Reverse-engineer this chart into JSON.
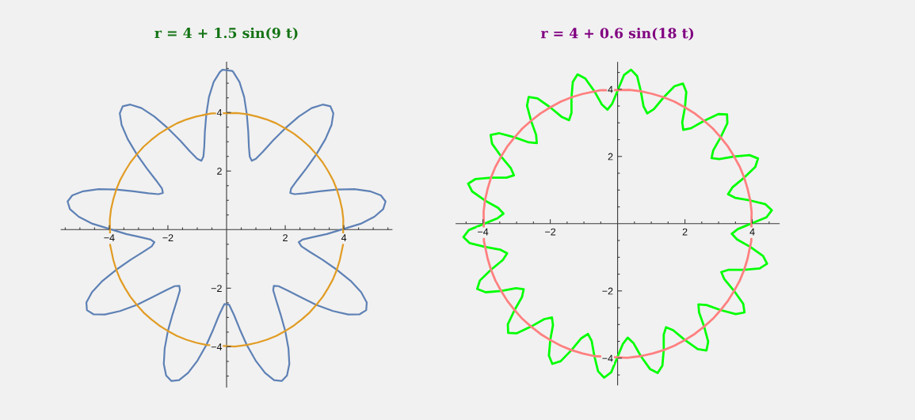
{
  "chart_data": [
    {
      "type": "line",
      "title": "r = 4 + 1.5 sin(9 t)",
      "xlim": [
        -5.64,
        5.64
      ],
      "ylim": [
        -5.38,
        5.72
      ],
      "xticks": [
        {
          "value": -5.5,
          "label": null
        },
        {
          "value": -5,
          "label": null
        },
        {
          "value": -4.5,
          "label": null
        },
        {
          "value": -4,
          "label": "−4"
        },
        {
          "value": -3.5,
          "label": null
        },
        {
          "value": -3,
          "label": null
        },
        {
          "value": -2.5,
          "label": null
        },
        {
          "value": -2,
          "label": "−2"
        },
        {
          "value": -1.5,
          "label": null
        },
        {
          "value": -1,
          "label": null
        },
        {
          "value": -0.5,
          "label": null
        },
        {
          "value": 0.5,
          "label": null
        },
        {
          "value": 1,
          "label": null
        },
        {
          "value": 1.5,
          "label": null
        },
        2,
        {
          "value": 2.5,
          "label": null
        },
        {
          "value": 3,
          "label": null
        },
        {
          "value": 3.5,
          "label": null
        },
        4,
        {
          "value": 4.5,
          "label": null
        },
        {
          "value": 5,
          "label": null
        },
        {
          "value": 5.5,
          "label": null
        }
      ],
      "yticks": [
        {
          "value": -5,
          "label": null
        },
        {
          "value": -4.5,
          "label": null
        },
        {
          "value": -4,
          "label": "−4"
        },
        {
          "value": -3.5,
          "label": null
        },
        {
          "value": -3,
          "label": null
        },
        {
          "value": -2.5,
          "label": null
        },
        {
          "value": -2,
          "label": "−2"
        },
        {
          "value": -1.5,
          "label": null
        },
        {
          "value": -1,
          "label": null
        },
        {
          "value": -0.5,
          "label": null
        },
        {
          "value": 0.5,
          "label": null
        },
        {
          "value": 1,
          "label": null
        },
        {
          "value": 1.5,
          "label": null
        },
        2,
        {
          "value": 2.5,
          "label": null
        },
        {
          "value": 3,
          "label": null
        },
        {
          "value": 3.5,
          "label": null
        },
        4,
        {
          "value": 4.5,
          "label": null
        },
        {
          "value": 5,
          "label": null
        },
        {
          "value": 5.5,
          "label": null
        }
      ],
      "series": [
        {
          "color": "#5e81b5",
          "x": [
            4.57,
            5.04,
            5.34,
            5.42,
            5.26,
            4.89,
            4.36,
            3.76,
            3.17,
            2.66,
            2.32,
            2.17,
            2.2,
            2.41,
            2.72,
            3.06,
            3.37,
            3.58,
            3.64,
            3.54,
            3.28,
            2.9,
            2.46,
            2,
            1.58,
            1.24,
            1,
            0.86,
            0.79,
            0.76,
            0.74,
            0.69,
            0.6,
            0.44,
            0.23,
            0.19,
            -0.14,
            -0.23,
            -0.44,
            -0.6,
            -0.69,
            -0.74,
            -0.76,
            -0.79,
            -0.86,
            -1,
            -1.24,
            -1.58,
            -2,
            -2.46,
            -2.9,
            -3.28,
            -3.54,
            -3.64,
            -3.58,
            -3.37,
            -3.06,
            -2.72,
            -2.41,
            -2.2,
            -2.17,
            -2.32,
            -2.66,
            -3.17,
            -3.76,
            -4.36,
            -4.89,
            -5.26,
            -5.42,
            -5.34,
            -5.04,
            -4.57,
            -3.42,
            -2.93,
            -2.59,
            -2.46,
            -2.55,
            -2.84,
            -3.27,
            -3.76,
            -4.23,
            -4.59,
            -4.78,
            -4.76,
            -4.54,
            -4.15,
            -3.63,
            -3.06,
            -2.53,
            -2.08,
            -1.77,
            -1.61,
            -1.59,
            -1.69,
            -1.84,
            -2,
            -2.11,
            -2.14,
            -2.06,
            -1.88,
            -1.62,
            -1.31,
            -0.99,
            -0.69,
            -0.45,
            -0.26,
            -0.11,
            -0.07,
            0.09,
            0.11,
            0.26,
            0.45,
            0.69,
            0.99,
            1.31,
            1.62,
            1.88,
            2.06,
            2.14,
            2.11,
            2,
            1.84,
            1.69,
            1.59,
            1.61,
            1.77,
            2.08,
            2.53,
            3.06,
            3.63,
            4.15,
            4.54,
            4.76,
            4.78,
            4.59,
            4.23,
            3.76,
            3.27,
            2.84,
            2.55,
            2.46,
            2.59,
            2.93,
            3.42,
            4.57,
            5.04
          ],
          "values": [
            0.2,
            0.44,
            0.7,
            0.96,
            1.17,
            1.31,
            1.38,
            1.37,
            1.31,
            1.24,
            1.21,
            1.25,
            1.4,
            1.69,
            2.09,
            2.57,
            3.09,
            3.58,
            3.97,
            4.21,
            4.27,
            4.15,
            3.86,
            3.46,
            3.04,
            2.66,
            2.42,
            2.35,
            2.49,
            2.84,
            3.34,
            3.94,
            4.53,
            5.04,
            5.38,
            5.42,
            5.46,
            5.38,
            5.04,
            4.53,
            3.94,
            3.34,
            2.84,
            2.49,
            2.35,
            2.42,
            2.66,
            3.04,
            3.46,
            3.86,
            4.15,
            4.27,
            4.21,
            3.97,
            3.58,
            3.09,
            2.57,
            2.09,
            1.69,
            1.4,
            1.25,
            1.21,
            1.24,
            1.31,
            1.37,
            1.38,
            1.31,
            1.17,
            0.96,
            0.7,
            0.44,
            0.2,
            -0.15,
            -0.26,
            -0.34,
            -0.43,
            -0.57,
            -0.76,
            -1.03,
            -1.37,
            -1.75,
            -2.14,
            -2.49,
            -2.75,
            -2.89,
            -2.9,
            -2.78,
            -2.57,
            -2.31,
            -2.08,
            -1.93,
            -1.92,
            -2.07,
            -2.41,
            -2.89,
            -3.46,
            -4.06,
            -4.59,
            -4.98,
            -5.17,
            -5.14,
            -4.89,
            -4.47,
            -3.94,
            -3.4,
            -2.93,
            -2.61,
            -2.54,
            -2.57,
            -2.61,
            -2.93,
            -3.4,
            -3.94,
            -4.47,
            -4.89,
            -5.14,
            -5.17,
            -4.98,
            -4.59,
            -4.06,
            -3.46,
            -2.89,
            -2.41,
            -2.07,
            -1.92,
            -1.93,
            -2.08,
            -2.31,
            -2.57,
            -2.78,
            -2.9,
            -2.89,
            -2.75,
            -2.49,
            -2.14,
            -1.75,
            -1.37,
            -1.03,
            -0.76,
            -0.57,
            -0.43,
            -0.34,
            -0.26,
            -0.15,
            0.2,
            0.44
          ]
        },
        {
          "color": "#e19c24",
          "x": [
            3.98,
            3.94,
            3.86,
            3.76,
            3.63,
            3.46,
            3.28,
            3.06,
            2.83,
            2.57,
            2.29,
            2,
            1.69,
            1.37,
            1.04,
            0.69,
            0.35,
            -0.52,
            -1.04,
            -1.37,
            -1.69,
            -2,
            -2.29,
            -2.57,
            -2.83,
            -3.06,
            -3.28,
            -3.46,
            -3.63,
            -3.76,
            -3.86,
            -3.94,
            -3.98,
            -3.97,
            -3.86,
            -3.76,
            -3.63,
            -3.46,
            -3.28,
            -3.06,
            -2.83,
            -2.57,
            -2.29,
            -2,
            -1.69,
            -1.37,
            -1.04,
            -0.69,
            0.28,
            0.69,
            1.04,
            1.37,
            1.69,
            2,
            2.29,
            2.57,
            2.83,
            3.06,
            3.28,
            3.46,
            3.63,
            3.76,
            3.86,
            3.97,
            3.98,
            3.94
          ],
          "values": [
            0.35,
            0.69,
            1.04,
            1.37,
            1.69,
            2,
            2.29,
            2.57,
            2.83,
            3.06,
            3.28,
            3.46,
            3.63,
            3.76,
            3.86,
            3.94,
            3.98,
            3.97,
            3.86,
            3.76,
            3.63,
            3.46,
            3.28,
            3.06,
            2.83,
            2.57,
            2.29,
            2,
            1.69,
            1.37,
            1.04,
            0.69,
            0.35,
            -0.52,
            -1.04,
            -1.37,
            -1.69,
            -2,
            -2.29,
            -2.57,
            -2.83,
            -3.06,
            -3.28,
            -3.46,
            -3.63,
            -3.76,
            -3.86,
            -3.94,
            -3.99,
            -3.94,
            -3.86,
            -3.76,
            -3.63,
            -3.46,
            -3.28,
            -3.06,
            -2.83,
            -2.57,
            -2.29,
            -2,
            -1.69,
            -1.37,
            -1.04,
            -0.52,
            0.35,
            0.69
          ]
        }
      ]
    },
    {
      "type": "line",
      "title": "r = 4 + 0.6 sin(18 t)",
      "xlim": [
        -4.8,
        4.8
      ],
      "ylim": [
        -4.8,
        4.8
      ],
      "xticks": [
        {
          "value": -4.5,
          "label": null
        },
        {
          "value": -4,
          "label": "−4"
        },
        {
          "value": -3.5,
          "label": null
        },
        {
          "value": -3,
          "label": null
        },
        {
          "value": -2.5,
          "label": null
        },
        {
          "value": -2,
          "label": "−2"
        },
        {
          "value": -1.5,
          "label": null
        },
        {
          "value": -1,
          "label": null
        },
        {
          "value": -0.5,
          "label": null
        },
        {
          "value": 0.5,
          "label": null
        },
        {
          "value": 1,
          "label": null
        },
        {
          "value": 1.5,
          "label": null
        },
        2,
        {
          "value": 2.5,
          "label": null
        },
        {
          "value": 3,
          "label": null
        },
        {
          "value": 3.5,
          "label": null
        },
        4,
        {
          "value": 4.5,
          "label": null
        }
      ],
      "yticks": [
        {
          "value": -4.5,
          "label": null
        },
        {
          "value": -4,
          "label": "−4"
        },
        {
          "value": -3.5,
          "label": null
        },
        {
          "value": -3,
          "label": null
        },
        {
          "value": -2.5,
          "label": null
        },
        {
          "value": -2,
          "label": "−2"
        },
        {
          "value": -1.5,
          "label": null
        },
        {
          "value": -1,
          "label": null
        },
        {
          "value": -0.5,
          "label": null
        },
        {
          "value": 0.5,
          "label": null
        },
        {
          "value": 1,
          "label": null
        },
        {
          "value": 1.5,
          "label": null
        },
        2,
        {
          "value": 2.5,
          "label": null
        },
        {
          "value": 3,
          "label": null
        },
        {
          "value": 3.5,
          "label": null
        },
        4,
        {
          "value": 4.5,
          "label": null
        }
      ],
      "series": [
        {
          "color": "#00ff00",
          "x": [
            4.42,
            4.58,
            4.39,
            3.94,
            3.49,
            3.28,
            3.41,
            3.76,
            4.09,
            4.17,
            3.92,
            3.46,
            3.02,
            2.79,
            2.84,
            3.06,
            3.26,
            3.25,
            2.99,
            2.57,
            2.18,
            1.95,
            1.92,
            2,
            2.04,
            1.94,
            1.69,
            1.37,
            1.08,
            0.88,
            0.77,
            0.69,
            0.58,
            0.4,
            0.19,
            -0.16,
            -0.3,
            -0.47,
            -0.69,
            -0.96,
            -1.19,
            -1.33,
            -1.37,
            -1.37,
            -1.44,
            -1.65,
            -2,
            -2.38,
            -2.64,
            -2.69,
            -2.57,
            -2.42,
            -2.4,
            -2.64,
            -3.06,
            -3.51,
            -3.77,
            -3.73,
            -3.46,
            -3.17,
            -3.08,
            -3.3,
            -3.76,
            -4.22,
            -4.44,
            -4.32,
            -3.94,
            -3.55,
            -3.39,
            -3.57,
            -4.42,
            -4.58,
            -4.39,
            -3.94,
            -3.49,
            -3.28,
            -3.41,
            -3.76,
            -4.09,
            -4.17,
            -3.92,
            -3.46,
            -3.02,
            -2.79,
            -2.84,
            -3.06,
            -3.26,
            -3.25,
            -2.99,
            -2.57,
            -2.18,
            -1.95,
            -1.92,
            -2,
            -2.04,
            -1.94,
            -1.69,
            -1.37,
            -1.08,
            -0.88,
            -0.77,
            -0.69,
            -0.58,
            -0.4,
            -0.19,
            0.16,
            0.3,
            0.47,
            0.69,
            0.96,
            1.19,
            1.33,
            1.37,
            1.37,
            1.44,
            1.65,
            2,
            2.38,
            2.64,
            2.69,
            2.57,
            2.42,
            2.4,
            2.64,
            3.06,
            3.51,
            3.77,
            3.73,
            3.46,
            3.17,
            3.08,
            3.3,
            3.76,
            4.22,
            4.44,
            4.32,
            3.94,
            3.55,
            3.39,
            3.57,
            4.42,
            4.58,
            4.39
          ],
          "values": [
            0.19,
            0.4,
            0.58,
            0.69,
            0.77,
            0.88,
            1.08,
            1.37,
            1.69,
            1.94,
            2.04,
            2,
            1.92,
            1.95,
            2.18,
            2.57,
            2.99,
            3.25,
            3.26,
            3.06,
            2.84,
            2.79,
            3.02,
            3.46,
            3.92,
            4.17,
            4.09,
            3.76,
            3.41,
            3.28,
            3.49,
            3.94,
            4.39,
            4.58,
            4.42,
            3.57,
            3.39,
            3.55,
            3.94,
            4.32,
            4.44,
            4.22,
            3.76,
            3.3,
            3.08,
            3.17,
            3.46,
            3.73,
            3.77,
            3.51,
            3.06,
            2.64,
            2.4,
            2.42,
            2.57,
            2.69,
            2.64,
            2.38,
            2,
            1.65,
            1.44,
            1.37,
            1.37,
            1.33,
            1.19,
            0.96,
            0.69,
            0.47,
            0.3,
            0.16,
            -0.19,
            -0.4,
            -0.58,
            -0.69,
            -0.77,
            -0.88,
            -1.08,
            -1.37,
            -1.69,
            -1.94,
            -2.04,
            -2,
            -1.92,
            -1.95,
            -2.18,
            -2.57,
            -2.99,
            -3.25,
            -3.26,
            -3.06,
            -2.84,
            -2.79,
            -3.02,
            -3.46,
            -3.92,
            -4.17,
            -4.09,
            -3.76,
            -3.41,
            -3.28,
            -3.49,
            -3.94,
            -4.39,
            -4.58,
            -4.42,
            -3.57,
            -3.39,
            -3.55,
            -3.94,
            -4.32,
            -4.44,
            -4.22,
            -3.76,
            -3.3,
            -3.08,
            -3.17,
            -3.46,
            -3.73,
            -3.77,
            -3.51,
            -3.06,
            -2.64,
            -2.4,
            -2.42,
            -2.57,
            -2.69,
            -2.64,
            -2.38,
            -2,
            -1.65,
            -1.44,
            -1.37,
            -1.37,
            -1.33,
            -1.19,
            -0.96,
            -0.69,
            -0.47,
            -0.3,
            -0.16,
            0.19,
            0.4,
            0.58
          ]
        },
        {
          "color": "#ff8080",
          "x": [
            3.98,
            3.94,
            3.86,
            3.76,
            3.63,
            3.46,
            3.28,
            3.06,
            2.83,
            2.57,
            2.29,
            2,
            1.69,
            1.37,
            1.04,
            0.69,
            0.35,
            -0.52,
            -1.04,
            -1.37,
            -1.69,
            -2,
            -2.29,
            -2.57,
            -2.83,
            -3.06,
            -3.28,
            -3.46,
            -3.63,
            -3.76,
            -3.86,
            -3.94,
            -3.98,
            -3.97,
            -3.86,
            -3.76,
            -3.63,
            -3.46,
            -3.28,
            -3.06,
            -2.83,
            -2.57,
            -2.29,
            -2,
            -1.69,
            -1.37,
            -1.04,
            -0.69,
            0.28,
            0.69,
            1.04,
            1.37,
            1.69,
            2,
            2.29,
            2.57,
            2.83,
            3.06,
            3.28,
            3.46,
            3.63,
            3.76,
            3.86,
            3.97,
            3.98,
            3.94
          ],
          "values": [
            0.35,
            0.69,
            1.04,
            1.37,
            1.69,
            2,
            2.29,
            2.57,
            2.83,
            3.06,
            3.28,
            3.46,
            3.63,
            3.76,
            3.86,
            3.94,
            3.98,
            3.97,
            3.86,
            3.76,
            3.63,
            3.46,
            3.28,
            3.06,
            2.83,
            2.57,
            2.29,
            2,
            1.69,
            1.37,
            1.04,
            0.69,
            0.35,
            -0.52,
            -1.04,
            -1.37,
            -1.69,
            -2,
            -2.29,
            -2.57,
            -2.83,
            -3.06,
            -3.28,
            -3.46,
            -3.63,
            -3.76,
            -3.86,
            -3.94,
            -3.99,
            -3.94,
            -3.86,
            -3.76,
            -3.63,
            -3.46,
            -3.28,
            -3.06,
            -2.83,
            -2.57,
            -2.29,
            -2,
            -1.69,
            -1.37,
            -1.04,
            -0.52,
            0.35,
            0.69
          ]
        }
      ]
    }
  ]
}
